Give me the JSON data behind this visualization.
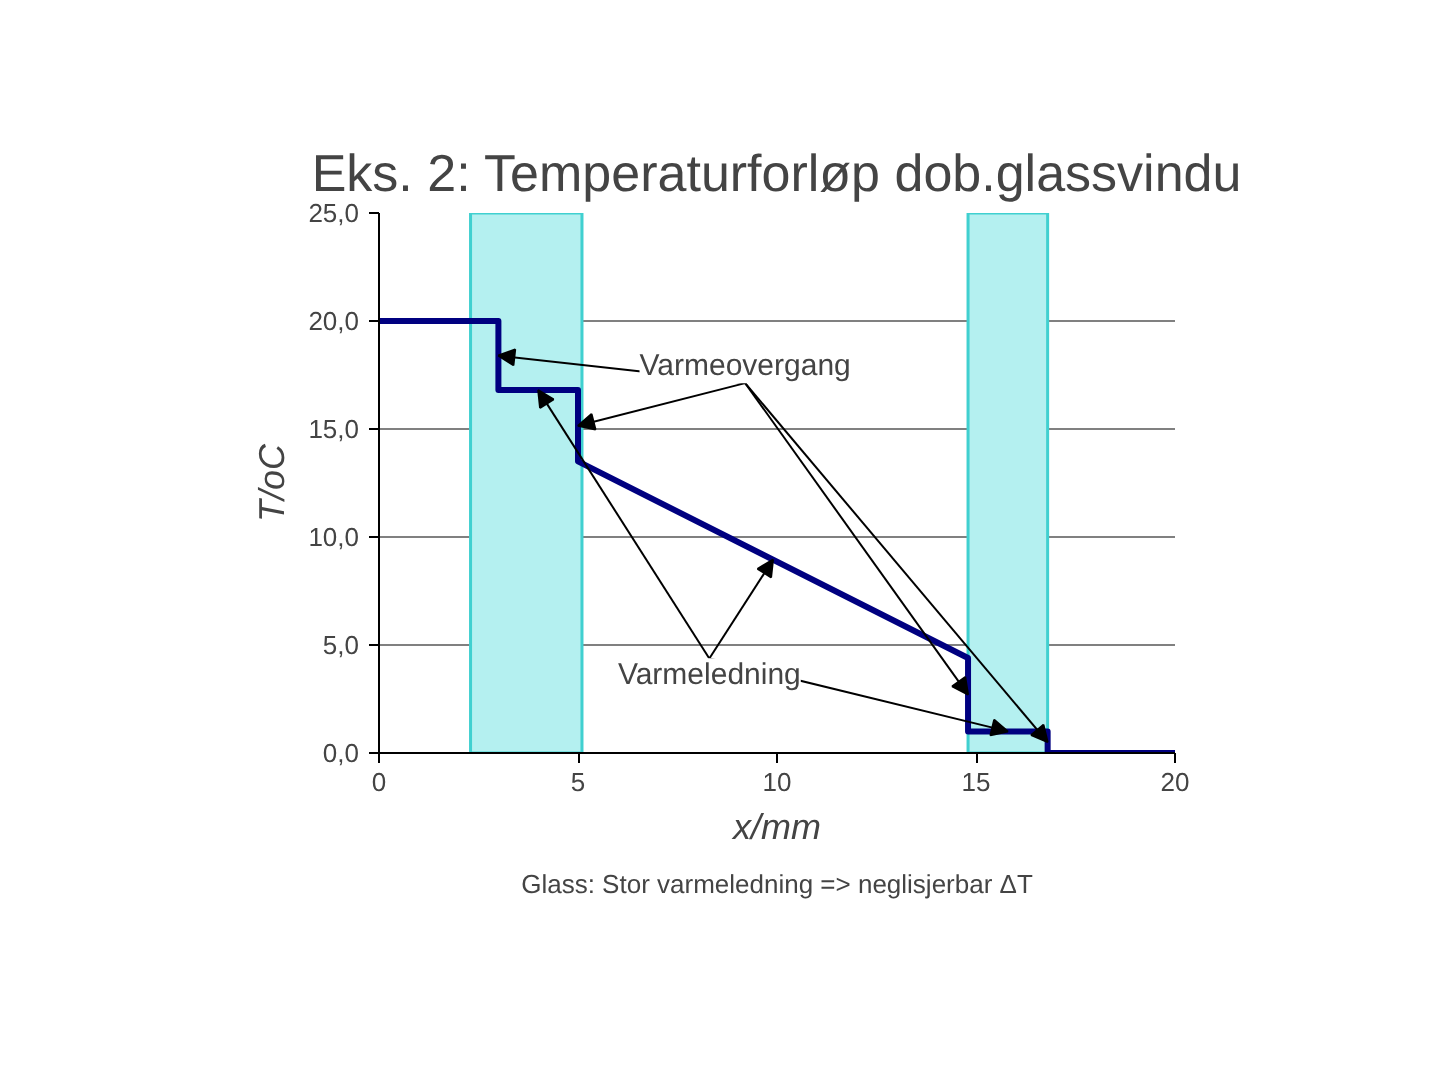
{
  "chart_data": {
    "type": "step",
    "title": "Eks. 2: Temperaturforløp dob.glassvindu",
    "xlabel": "x/mm",
    "ylabel": "T/oC",
    "x": [
      0,
      3,
      3,
      5,
      5,
      14.8,
      14.8,
      16.8,
      16.8,
      20
    ],
    "series": [
      {
        "color": "#000080",
        "values": [
          20,
          20,
          16.8,
          16.8,
          13.5,
          4.4,
          1.0,
          1.0,
          0,
          0
        ]
      }
    ],
    "xlim": [
      0,
      20
    ],
    "xticks": [
      0,
      5,
      10,
      15,
      20
    ],
    "ylim": [
      0,
      25
    ],
    "yticks": [
      {
        "value": 0,
        "label": "0,0"
      },
      {
        "value": 5,
        "label": "5,0"
      },
      {
        "value": 10,
        "label": "10,0"
      },
      {
        "value": 15,
        "label": "15,0"
      },
      {
        "value": 20,
        "label": "20,0"
      },
      {
        "value": 25,
        "label": "25,0"
      }
    ],
    "grid": "y",
    "bands": [
      {
        "axis": "x",
        "from": 2.3,
        "to": 5.1,
        "color": "#b4f0f0"
      },
      {
        "axis": "x",
        "from": 14.8,
        "to": 16.8,
        "color": "#b4f0f0"
      }
    ],
    "annotations": [
      {
        "text": "Varmeovergang",
        "x": 3,
        "y": 18.4
      },
      {
        "text": "Varmeledning",
        "x": 4,
        "y": 16.8
      },
      "Glass: Stor varmeledning => neglisjerbar ΔT"
    ]
  }
}
